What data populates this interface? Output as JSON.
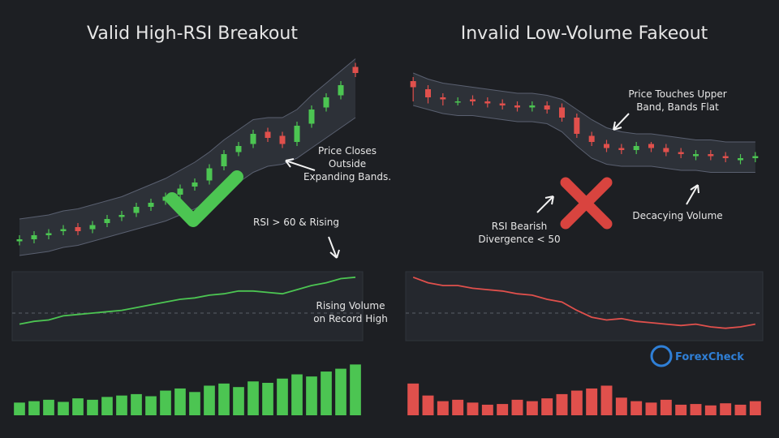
{
  "chart_data": [
    {
      "type": "candlestick",
      "title": "Valid High-RSI Breakout",
      "price": {
        "ylim": [
          0,
          100
        ],
        "open": [
          9,
          10,
          12,
          14,
          16,
          15,
          18,
          21,
          23,
          26,
          29,
          32,
          36,
          39,
          46,
          53,
          57,
          63,
          61,
          58,
          67,
          75,
          81,
          95
        ],
        "high": [
          12,
          14,
          15,
          17,
          18,
          19,
          22,
          24,
          28,
          30,
          33,
          37,
          40,
          47,
          54,
          58,
          64,
          65,
          63,
          68,
          76,
          82,
          88,
          97
        ],
        "low": [
          7,
          8,
          10,
          12,
          12,
          13,
          16,
          19,
          21,
          24,
          27,
          30,
          34,
          37,
          44,
          51,
          55,
          58,
          55,
          56,
          65,
          73,
          79,
          90
        ],
        "close": [
          10,
          12,
          13,
          15,
          14,
          17,
          20,
          22,
          26,
          28,
          31,
          35,
          38,
          45,
          52,
          56,
          62,
          60,
          57,
          66,
          74,
          80,
          86,
          92
        ],
        "band_upper": [
          20,
          21,
          22,
          24,
          25,
          27,
          29,
          31,
          34,
          37,
          40,
          44,
          48,
          53,
          59,
          64,
          69,
          70,
          70,
          74,
          81,
          87,
          93,
          99
        ],
        "band_lower": [
          2,
          3,
          4,
          6,
          7,
          9,
          11,
          13,
          15,
          17,
          19,
          22,
          25,
          29,
          34,
          38,
          43,
          46,
          47,
          50,
          55,
          60,
          65,
          70
        ],
        "up_color": "#4cc552",
        "down_color": "#e0504c"
      },
      "rsi": {
        "ylim": [
          30,
          80
        ],
        "reference_line": 50,
        "color": "#4cc552",
        "values": [
          42,
          44,
          45,
          48,
          49,
          50,
          51,
          52,
          54,
          56,
          58,
          60,
          61,
          63,
          64,
          66,
          66,
          65,
          64,
          67,
          70,
          72,
          75,
          76
        ]
      },
      "volume": {
        "ylim": [
          0,
          100
        ],
        "color": "#4cc552",
        "values": [
          18,
          20,
          22,
          19,
          24,
          22,
          26,
          28,
          30,
          27,
          35,
          38,
          33,
          42,
          45,
          40,
          48,
          46,
          52,
          58,
          55,
          62,
          66,
          72
        ]
      },
      "annotations": [
        {
          "lines": [
            "Price Closes",
            "Outside",
            "Expanding Bands."
          ]
        },
        {
          "lines": [
            "RSI > 60 & Rising"
          ]
        },
        {
          "lines": [
            "Rising Volume",
            "on Record High"
          ]
        }
      ]
    },
    {
      "type": "candlestick",
      "title": "Invalid Low-Volume Fakeout",
      "price": {
        "ylim": [
          0,
          100
        ],
        "open": [
          88,
          84,
          80,
          78,
          79,
          78,
          77,
          76,
          75,
          76,
          75,
          70,
          61,
          57,
          55,
          54,
          57,
          55,
          53,
          51,
          52,
          51,
          49,
          50
        ],
        "high": [
          90,
          86,
          82,
          80,
          81,
          80,
          79,
          78,
          78,
          78,
          77,
          72,
          63,
          59,
          57,
          58,
          58,
          57,
          55,
          54,
          54,
          53,
          52,
          53
        ],
        "low": [
          78,
          77,
          76,
          76,
          76,
          75,
          74,
          73,
          73,
          72,
          68,
          60,
          56,
          53,
          52,
          52,
          53,
          51,
          50,
          49,
          49,
          48,
          47,
          48
        ],
        "close": [
          85,
          80,
          79,
          78,
          78,
          77,
          76,
          75,
          76,
          74,
          70,
          62,
          58,
          55,
          54,
          56,
          55,
          53,
          52,
          52,
          51,
          50,
          50,
          51
        ],
        "band_upper": [
          92,
          89,
          87,
          86,
          85,
          84,
          83,
          82,
          82,
          81,
          79,
          74,
          69,
          65,
          63,
          62,
          62,
          61,
          60,
          59,
          59,
          58,
          58,
          58
        ],
        "band_lower": [
          76,
          74,
          72,
          71,
          71,
          70,
          69,
          68,
          68,
          67,
          63,
          56,
          50,
          47,
          46,
          46,
          46,
          45,
          44,
          44,
          43,
          43,
          43,
          43
        ],
        "up_color": "#4cc552",
        "down_color": "#e0504c"
      },
      "rsi": {
        "ylim": [
          30,
          80
        ],
        "reference_line": 50,
        "color": "#e0504c",
        "values": [
          76,
          72,
          70,
          70,
          68,
          67,
          66,
          64,
          63,
          60,
          58,
          52,
          47,
          45,
          46,
          44,
          43,
          42,
          41,
          42,
          40,
          39,
          40,
          42
        ]
      },
      "volume": {
        "ylim": [
          0,
          100
        ],
        "color": "#e0504c",
        "values": [
          45,
          28,
          20,
          22,
          18,
          15,
          16,
          22,
          20,
          24,
          30,
          35,
          38,
          42,
          25,
          20,
          18,
          22,
          15,
          16,
          14,
          17,
          15,
          20
        ]
      },
      "annotations": [
        {
          "lines": [
            "Price Touches Upper",
            "Band, Bands Flat"
          ]
        },
        {
          "lines": [
            "RSI Bearish",
            "Divergence < 50"
          ]
        },
        {
          "lines": [
            "Decacying Volume"
          ]
        }
      ]
    }
  ],
  "watermark": "ForexCheck"
}
